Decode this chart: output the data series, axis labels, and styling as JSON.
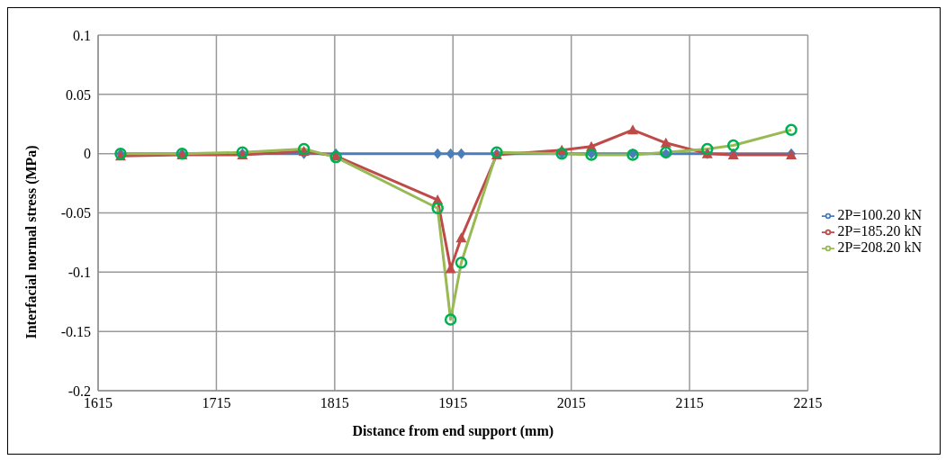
{
  "chart_data": {
    "type": "line",
    "xlabel": "Distance from end support (mm)",
    "ylabel": "Interfacial normal stress (MPa)",
    "x": [
      1634,
      1686,
      1737,
      1789,
      1816,
      1902,
      1913,
      1922,
      1952,
      2007,
      2032,
      2067,
      2095,
      2130,
      2152,
      2201
    ],
    "xlim": [
      1615,
      2215
    ],
    "xticks": [
      1615,
      1715,
      1815,
      1915,
      2015,
      2115,
      2215
    ],
    "ylim": [
      -0.2,
      0.1
    ],
    "yticks": [
      -0.2,
      -0.15,
      -0.1,
      -0.05,
      0,
      0.05,
      0.1
    ],
    "grid": true,
    "legend": "right",
    "series": [
      {
        "name": "2P=100.20 kN",
        "color": "#4a7ebb",
        "marker": "diamond",
        "values": [
          0,
          0,
          0,
          0,
          0,
          0,
          0,
          0,
          0,
          0,
          0,
          0,
          0,
          0,
          0,
          0
        ]
      },
      {
        "name": "2P=185.20 kN",
        "color": "#be4b48",
        "marker": "triangle",
        "values": [
          -0.002,
          -0.001,
          -0.001,
          0.002,
          -0.002,
          -0.039,
          -0.097,
          -0.071,
          -0.001,
          0.003,
          0.006,
          0.02,
          0.009,
          0,
          -0.001,
          -0.001
        ]
      },
      {
        "name": "2P=208.20 kN",
        "color": "#98b954",
        "marker": "circle",
        "values": [
          0,
          0,
          0.001,
          0.004,
          -0.003,
          -0.046,
          -0.14,
          -0.092,
          0.001,
          0,
          -0.001,
          -0.001,
          0.001,
          0.004,
          0.007,
          0.02
        ]
      }
    ]
  }
}
